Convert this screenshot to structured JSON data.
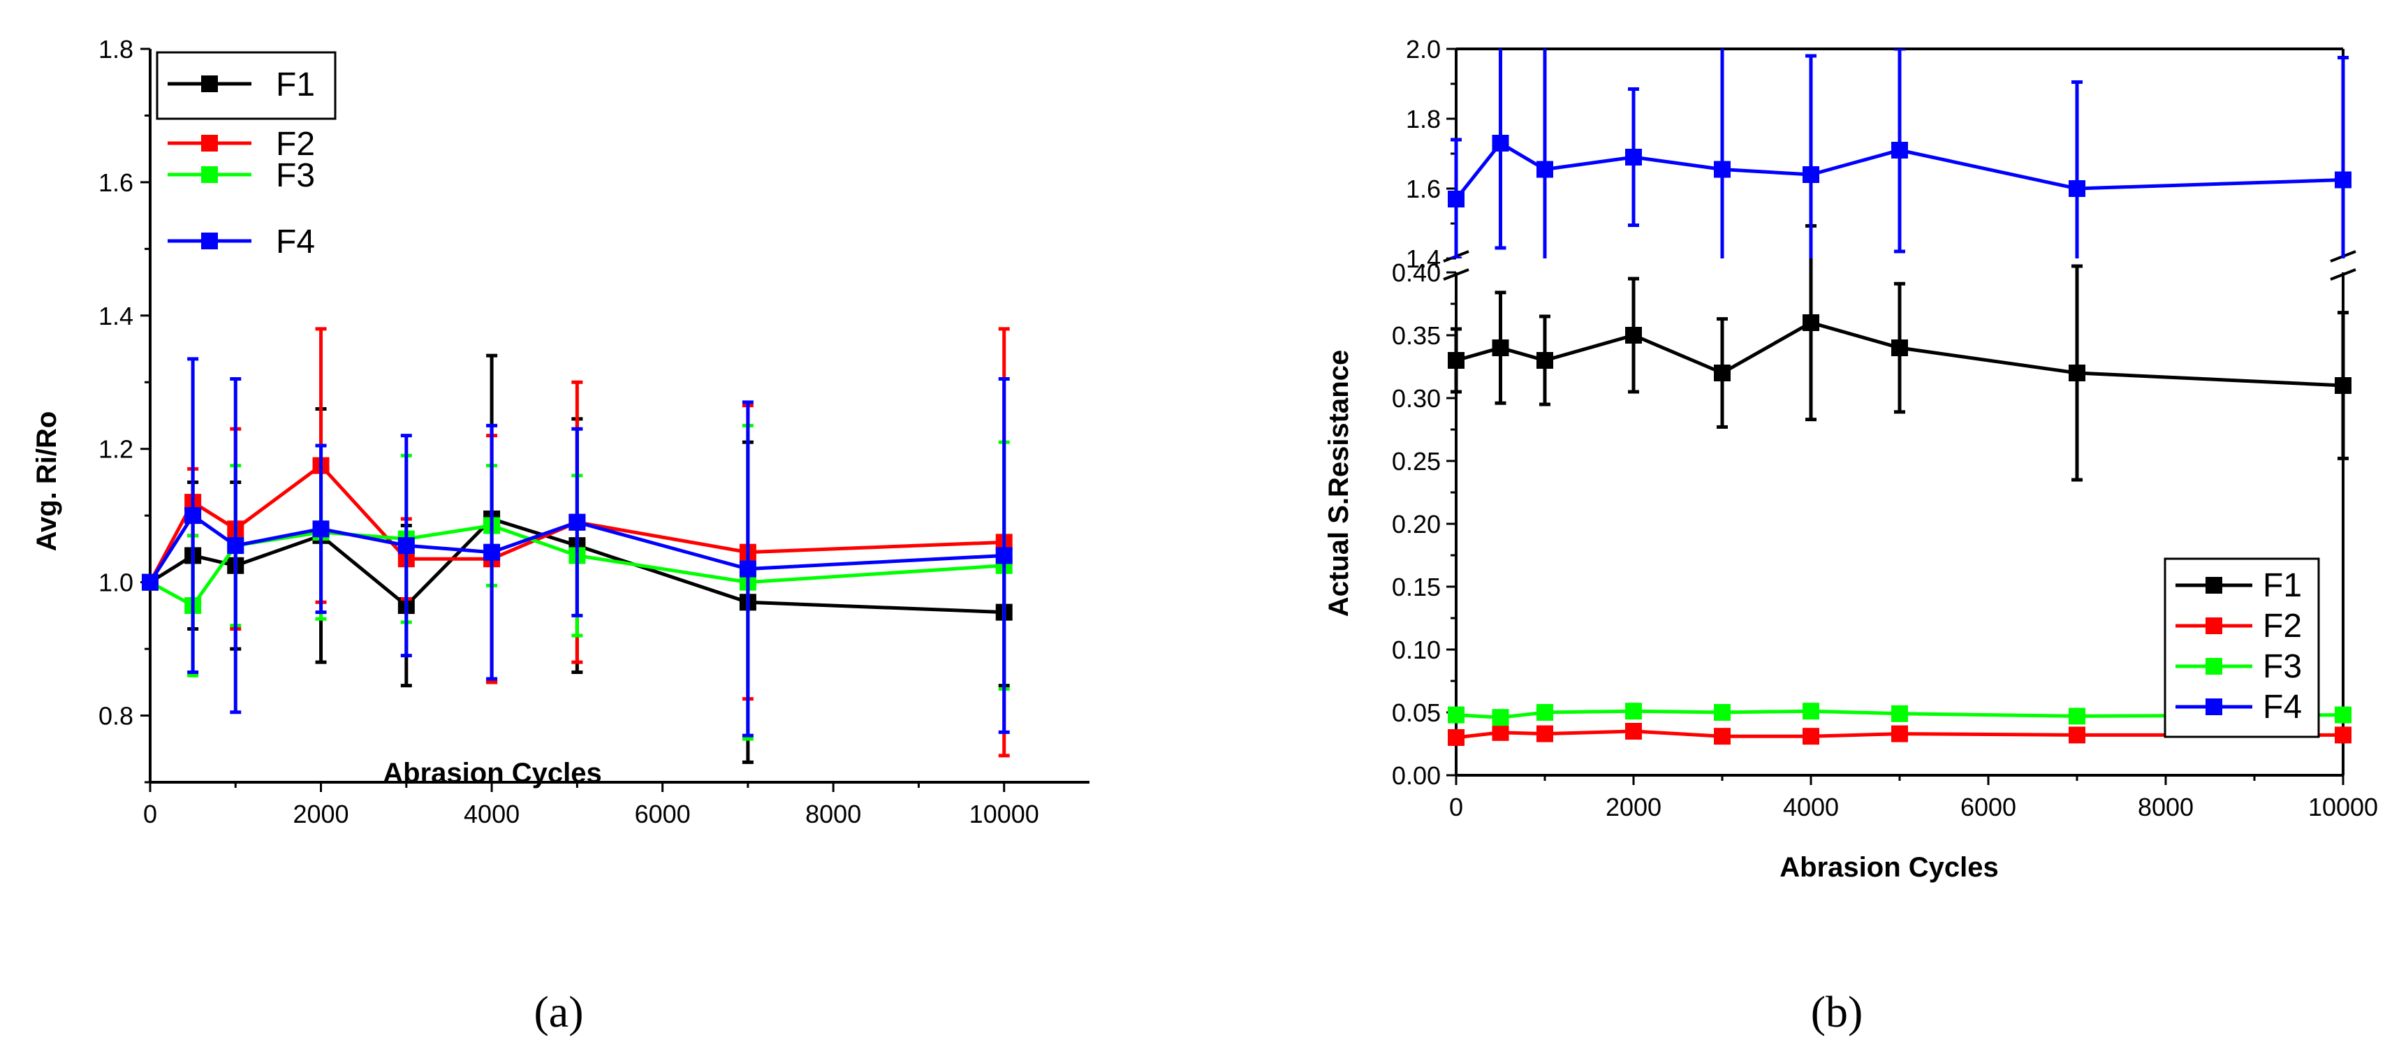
{
  "chart_data": [
    {
      "type": "line",
      "panel_label": "(a)",
      "xlabel": "Abrasion Cycles",
      "ylabel": "Avg. Ri/Ro",
      "xlim": [
        0,
        11000
      ],
      "ylim": [
        0.7,
        1.8
      ],
      "xticks": [
        "0",
        "2000",
        "4000",
        "6000",
        "8000",
        "10000"
      ],
      "yticks": [
        "0.8",
        "1.0",
        "1.2",
        "1.4",
        "1.6",
        "1.8"
      ],
      "legend_position": "top-left",
      "x": [
        0,
        500,
        1000,
        2000,
        3000,
        4000,
        5000,
        7000,
        10000
      ],
      "series": [
        {
          "name": "F1",
          "color": "#000000",
          "values": [
            1.0,
            1.04,
            1.025,
            1.07,
            0.965,
            1.095,
            1.055,
            0.97,
            0.955
          ],
          "errors": [
            0.0,
            0.11,
            0.125,
            0.19,
            0.12,
            0.245,
            0.19,
            0.24,
            0.11
          ]
        },
        {
          "name": "F2",
          "color": "#ff0000",
          "values": [
            1.0,
            1.12,
            1.08,
            1.175,
            1.035,
            1.035,
            1.09,
            1.045,
            1.06
          ],
          "errors": [
            0.0,
            0.05,
            0.15,
            0.205,
            0.06,
            0.185,
            0.21,
            0.22,
            0.32
          ]
        },
        {
          "name": "F3",
          "color": "#00ff00",
          "values": [
            1.0,
            0.965,
            1.055,
            1.075,
            1.065,
            1.085,
            1.04,
            1.0,
            1.025
          ],
          "errors": [
            0.0,
            0.105,
            0.12,
            0.13,
            0.125,
            0.09,
            0.12,
            0.235,
            0.185
          ]
        },
        {
          "name": "F4",
          "color": "#0000ff",
          "values": [
            1.0,
            1.1,
            1.055,
            1.08,
            1.055,
            1.045,
            1.09,
            1.02,
            1.04
          ],
          "errors": [
            0.0,
            0.235,
            0.25,
            0.125,
            0.165,
            0.19,
            0.14,
            0.25,
            0.265
          ]
        }
      ]
    },
    {
      "type": "line",
      "panel_label": "(b)",
      "xlabel": "Abrasion Cycles",
      "ylabel": "Actual  S.Resistance",
      "xlim": [
        0,
        10000
      ],
      "ylim_lower": [
        0.0,
        0.4
      ],
      "ylim_upper": [
        1.4,
        2.0
      ],
      "axis_break": true,
      "xticks": [
        "0",
        "2000",
        "4000",
        "6000",
        "8000",
        "10000"
      ],
      "yticks_lower": [
        "0.00",
        "0.05",
        "0.10",
        "0.15",
        "0.20",
        "0.25",
        "0.30",
        "0.35",
        "0.40"
      ],
      "yticks_upper": [
        "1.4",
        "1.6",
        "1.8",
        "2.0"
      ],
      "legend_position": "bottom-right",
      "x": [
        0,
        500,
        1000,
        2000,
        3000,
        4000,
        5000,
        7000,
        10000
      ],
      "series": [
        {
          "name": "F1",
          "color": "#000000",
          "values": [
            0.33,
            0.34,
            0.33,
            0.35,
            0.32,
            0.36,
            0.34,
            0.32,
            0.31
          ],
          "errors": [
            0.025,
            0.044,
            0.035,
            0.045,
            0.043,
            0.077,
            0.051,
            0.085,
            0.058
          ]
        },
        {
          "name": "F2",
          "color": "#ff0000",
          "values": [
            0.03,
            0.034,
            0.033,
            0.035,
            0.031,
            0.031,
            0.033,
            0.032,
            0.032
          ],
          "errors": [
            0.004,
            0.004,
            0.004,
            0.004,
            0.004,
            0.004,
            0.004,
            0.004,
            0.004
          ]
        },
        {
          "name": "F3",
          "color": "#00ff00",
          "values": [
            0.048,
            0.046,
            0.05,
            0.051,
            0.05,
            0.051,
            0.049,
            0.047,
            0.048
          ],
          "errors": [
            0.004,
            0.004,
            0.004,
            0.004,
            0.004,
            0.004,
            0.004,
            0.004,
            0.004
          ]
        },
        {
          "name": "F4",
          "color": "#0000ff",
          "values": [
            1.57,
            1.73,
            1.655,
            1.69,
            1.655,
            1.64,
            1.71,
            1.6,
            1.625
          ],
          "errors": [
            0.17,
            0.3,
            0.35,
            0.195,
            0.35,
            0.34,
            0.29,
            0.305,
            0.35
          ]
        }
      ]
    }
  ]
}
